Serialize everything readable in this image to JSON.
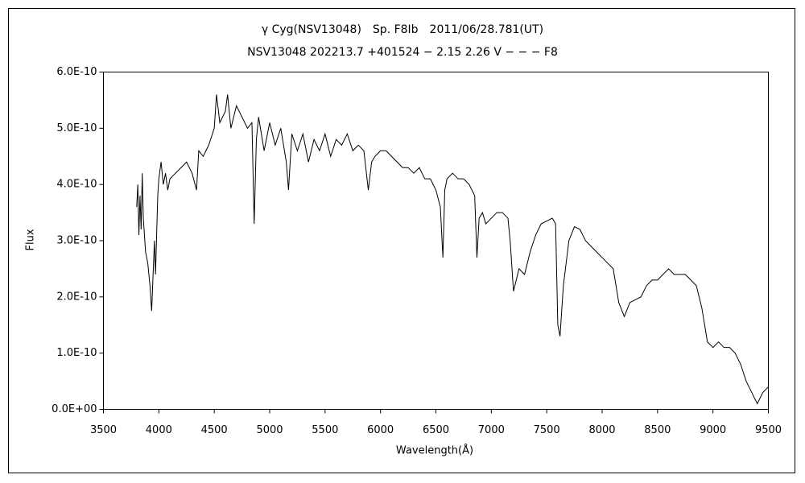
{
  "chart_data": {
    "type": "line",
    "title": "γ Cyg(NSV13048)　Sp. F8Ib　2011/06/28.781(UT)",
    "subtitle": "NSV13048 202213.7 +401524 − 2.15 2.26 V − − − F8",
    "x_label": "Wavelength(Å)",
    "y_label": "Flux",
    "xlim": [
      3500,
      9500
    ],
    "xticks": [
      3500,
      4000,
      4500,
      5000,
      5500,
      6000,
      6500,
      7000,
      7500,
      8000,
      8500,
      9000,
      9500
    ],
    "ylim": [
      0,
      6e-10
    ],
    "yticks": [
      {
        "value": 0,
        "label": "0.0E+00"
      },
      {
        "value": 1e-10,
        "label": "1.0E-10"
      },
      {
        "value": 2e-10,
        "label": "2.0E-10"
      },
      {
        "value": 3e-10,
        "label": "3.0E-10"
      },
      {
        "value": 4e-10,
        "label": "4.0E-10"
      },
      {
        "value": 5e-10,
        "label": "5.0E-10"
      },
      {
        "value": 6e-10,
        "label": "6.0E-10"
      }
    ],
    "grid": false,
    "color": "#000000",
    "x": [
      3800,
      3810,
      3820,
      3830,
      3840,
      3850,
      3860,
      3880,
      3900,
      3920,
      3935,
      3950,
      3960,
      3970,
      3990,
      4000,
      4020,
      4040,
      4060,
      4080,
      4100,
      4150,
      4200,
      4250,
      4300,
      4340,
      4360,
      4400,
      4450,
      4500,
      4520,
      4550,
      4600,
      4620,
      4650,
      4700,
      4750,
      4800,
      4840,
      4860,
      4880,
      4900,
      4950,
      5000,
      5050,
      5100,
      5150,
      5170,
      5200,
      5250,
      5300,
      5350,
      5400,
      5450,
      5500,
      5550,
      5600,
      5650,
      5700,
      5750,
      5800,
      5850,
      5890,
      5920,
      5950,
      6000,
      6050,
      6100,
      6150,
      6200,
      6250,
      6300,
      6350,
      6400,
      6450,
      6500,
      6540,
      6563,
      6580,
      6600,
      6650,
      6700,
      6750,
      6800,
      6850,
      6870,
      6890,
      6920,
      6950,
      7000,
      7050,
      7100,
      7150,
      7170,
      7200,
      7250,
      7300,
      7350,
      7400,
      7450,
      7500,
      7550,
      7580,
      7600,
      7620,
      7650,
      7700,
      7750,
      7800,
      7850,
      7900,
      7950,
      8000,
      8050,
      8100,
      8150,
      8200,
      8250,
      8300,
      8350,
      8400,
      8450,
      8500,
      8550,
      8600,
      8650,
      8700,
      8750,
      8800,
      8850,
      8900,
      8950,
      9000,
      9050,
      9100,
      9150,
      9200,
      9250,
      9300,
      9350,
      9400,
      9450,
      9500
    ],
    "values": [
      3.6e-10,
      4e-10,
      3.1e-10,
      3.8e-10,
      3.2e-10,
      4.2e-10,
      3.4e-10,
      2.8e-10,
      2.6e-10,
      2.2e-10,
      1.75e-10,
      2.5e-10,
      3e-10,
      2.4e-10,
      3.8e-10,
      4.1e-10,
      4.4e-10,
      4e-10,
      4.2e-10,
      3.9e-10,
      4.1e-10,
      4.2e-10,
      4.3e-10,
      4.4e-10,
      4.2e-10,
      3.9e-10,
      4.6e-10,
      4.5e-10,
      4.7e-10,
      5e-10,
      5.6e-10,
      5.1e-10,
      5.3e-10,
      5.6e-10,
      5e-10,
      5.4e-10,
      5.2e-10,
      5e-10,
      5.1e-10,
      3.3e-10,
      4.8e-10,
      5.2e-10,
      4.6e-10,
      5.1e-10,
      4.7e-10,
      5e-10,
      4.4e-10,
      3.9e-10,
      4.9e-10,
      4.6e-10,
      4.9e-10,
      4.4e-10,
      4.8e-10,
      4.6e-10,
      4.9e-10,
      4.5e-10,
      4.8e-10,
      4.7e-10,
      4.9e-10,
      4.6e-10,
      4.7e-10,
      4.6e-10,
      3.9e-10,
      4.4e-10,
      4.5e-10,
      4.6e-10,
      4.6e-10,
      4.5e-10,
      4.4e-10,
      4.3e-10,
      4.3e-10,
      4.2e-10,
      4.3e-10,
      4.1e-10,
      4.1e-10,
      3.9e-10,
      3.6e-10,
      2.7e-10,
      3.9e-10,
      4.1e-10,
      4.2e-10,
      4.1e-10,
      4.1e-10,
      4e-10,
      3.8e-10,
      2.7e-10,
      3.4e-10,
      3.5e-10,
      3.3e-10,
      3.4e-10,
      3.5e-10,
      3.5e-10,
      3.4e-10,
      3e-10,
      2.1e-10,
      2.5e-10,
      2.4e-10,
      2.8e-10,
      3.1e-10,
      3.3e-10,
      3.35e-10,
      3.4e-10,
      3.3e-10,
      1.5e-10,
      1.3e-10,
      2.2e-10,
      3e-10,
      3.25e-10,
      3.2e-10,
      3e-10,
      2.9e-10,
      2.8e-10,
      2.7e-10,
      2.6e-10,
      2.5e-10,
      1.9e-10,
      1.65e-10,
      1.9e-10,
      1.95e-10,
      2e-10,
      2.2e-10,
      2.3e-10,
      2.3e-10,
      2.4e-10,
      2.5e-10,
      2.4e-10,
      2.4e-10,
      2.4e-10,
      2.3e-10,
      2.2e-10,
      1.8e-10,
      1.2e-10,
      1.1e-10,
      1.2e-10,
      1.1e-10,
      1.1e-10,
      1e-10,
      8e-11,
      5e-11,
      3e-11,
      1e-11,
      3e-11,
      4e-11
    ]
  }
}
